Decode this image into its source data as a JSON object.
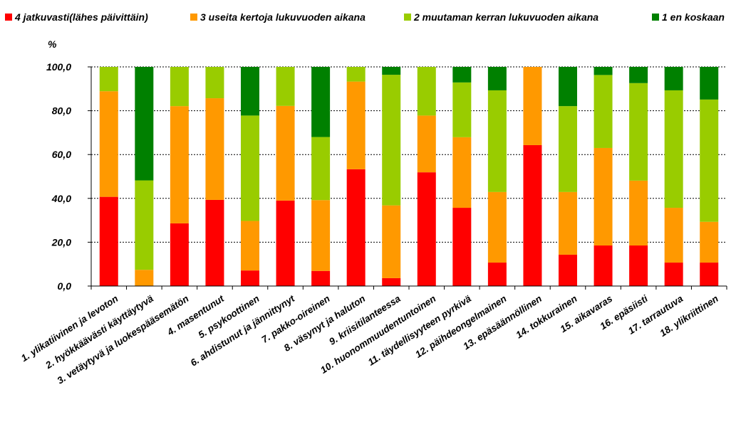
{
  "chart_data": {
    "type": "bar",
    "stacked": true,
    "y_unit_label": "%",
    "ylim": [
      0,
      100
    ],
    "yticks": [
      "0,0",
      "20,0",
      "40,0",
      "60,0",
      "80,0",
      "100,0"
    ],
    "grid": "horizontal dotted",
    "legend_position": "top",
    "categories": [
      "1. ylikatiivinen ja levoton",
      "2. hyökkäävästi käyttäytyvä",
      "3. vetäytyvä ja luokespääsemätön",
      "4. masentunut",
      "5. psykoottinen",
      "6. ahdistunut ja jännittynyt",
      "7. pakko-oireinen",
      "8. väsynyt ja haluton",
      "9. kriisitilanteessa",
      "10. huonommuudentuntoinen",
      "11. täydellisyyteen pyrkivä",
      "12. päihdeongelmainen",
      "13. epäsäännöllinen",
      "14. tokkurainen",
      "15. aikavaras",
      "16. epäsiisti",
      "17. tarrautuva",
      "18. ylikriittinen"
    ],
    "series": [
      {
        "name": "4 jatkuvasti(lähes päivittäin)",
        "color": "#ff0000",
        "values": [
          40.7,
          0,
          28.6,
          39.3,
          7.1,
          39.0,
          6.9,
          53.3,
          3.6,
          51.9,
          35.7,
          10.7,
          64.3,
          14.3,
          18.5,
          18.5,
          10.7,
          10.7
        ]
      },
      {
        "name": "3 useita kertoja lukuvuoden aikana",
        "color": "#ff9900",
        "values": [
          48.2,
          7.4,
          53.5,
          46.4,
          22.6,
          43.2,
          32.3,
          40.0,
          33.2,
          25.9,
          32.2,
          32.2,
          35.7,
          28.6,
          44.5,
          29.6,
          25.0,
          18.6
        ]
      },
      {
        "name": "2 muutaman kerran lukuvuoden aikana",
        "color": "#99cc00",
        "values": [
          11.1,
          40.8,
          17.9,
          14.3,
          48.1,
          17.8,
          28.8,
          6.7,
          59.6,
          22.2,
          25.0,
          46.4,
          0,
          39.2,
          33.3,
          44.5,
          53.6,
          55.8
        ]
      },
      {
        "name": "1 en koskaan",
        "color": "#008000",
        "values": [
          0,
          51.8,
          0,
          0,
          22.2,
          0,
          32.0,
          0,
          3.6,
          0,
          7.1,
          10.7,
          0,
          17.9,
          3.7,
          7.4,
          10.7,
          14.9
        ]
      }
    ]
  }
}
